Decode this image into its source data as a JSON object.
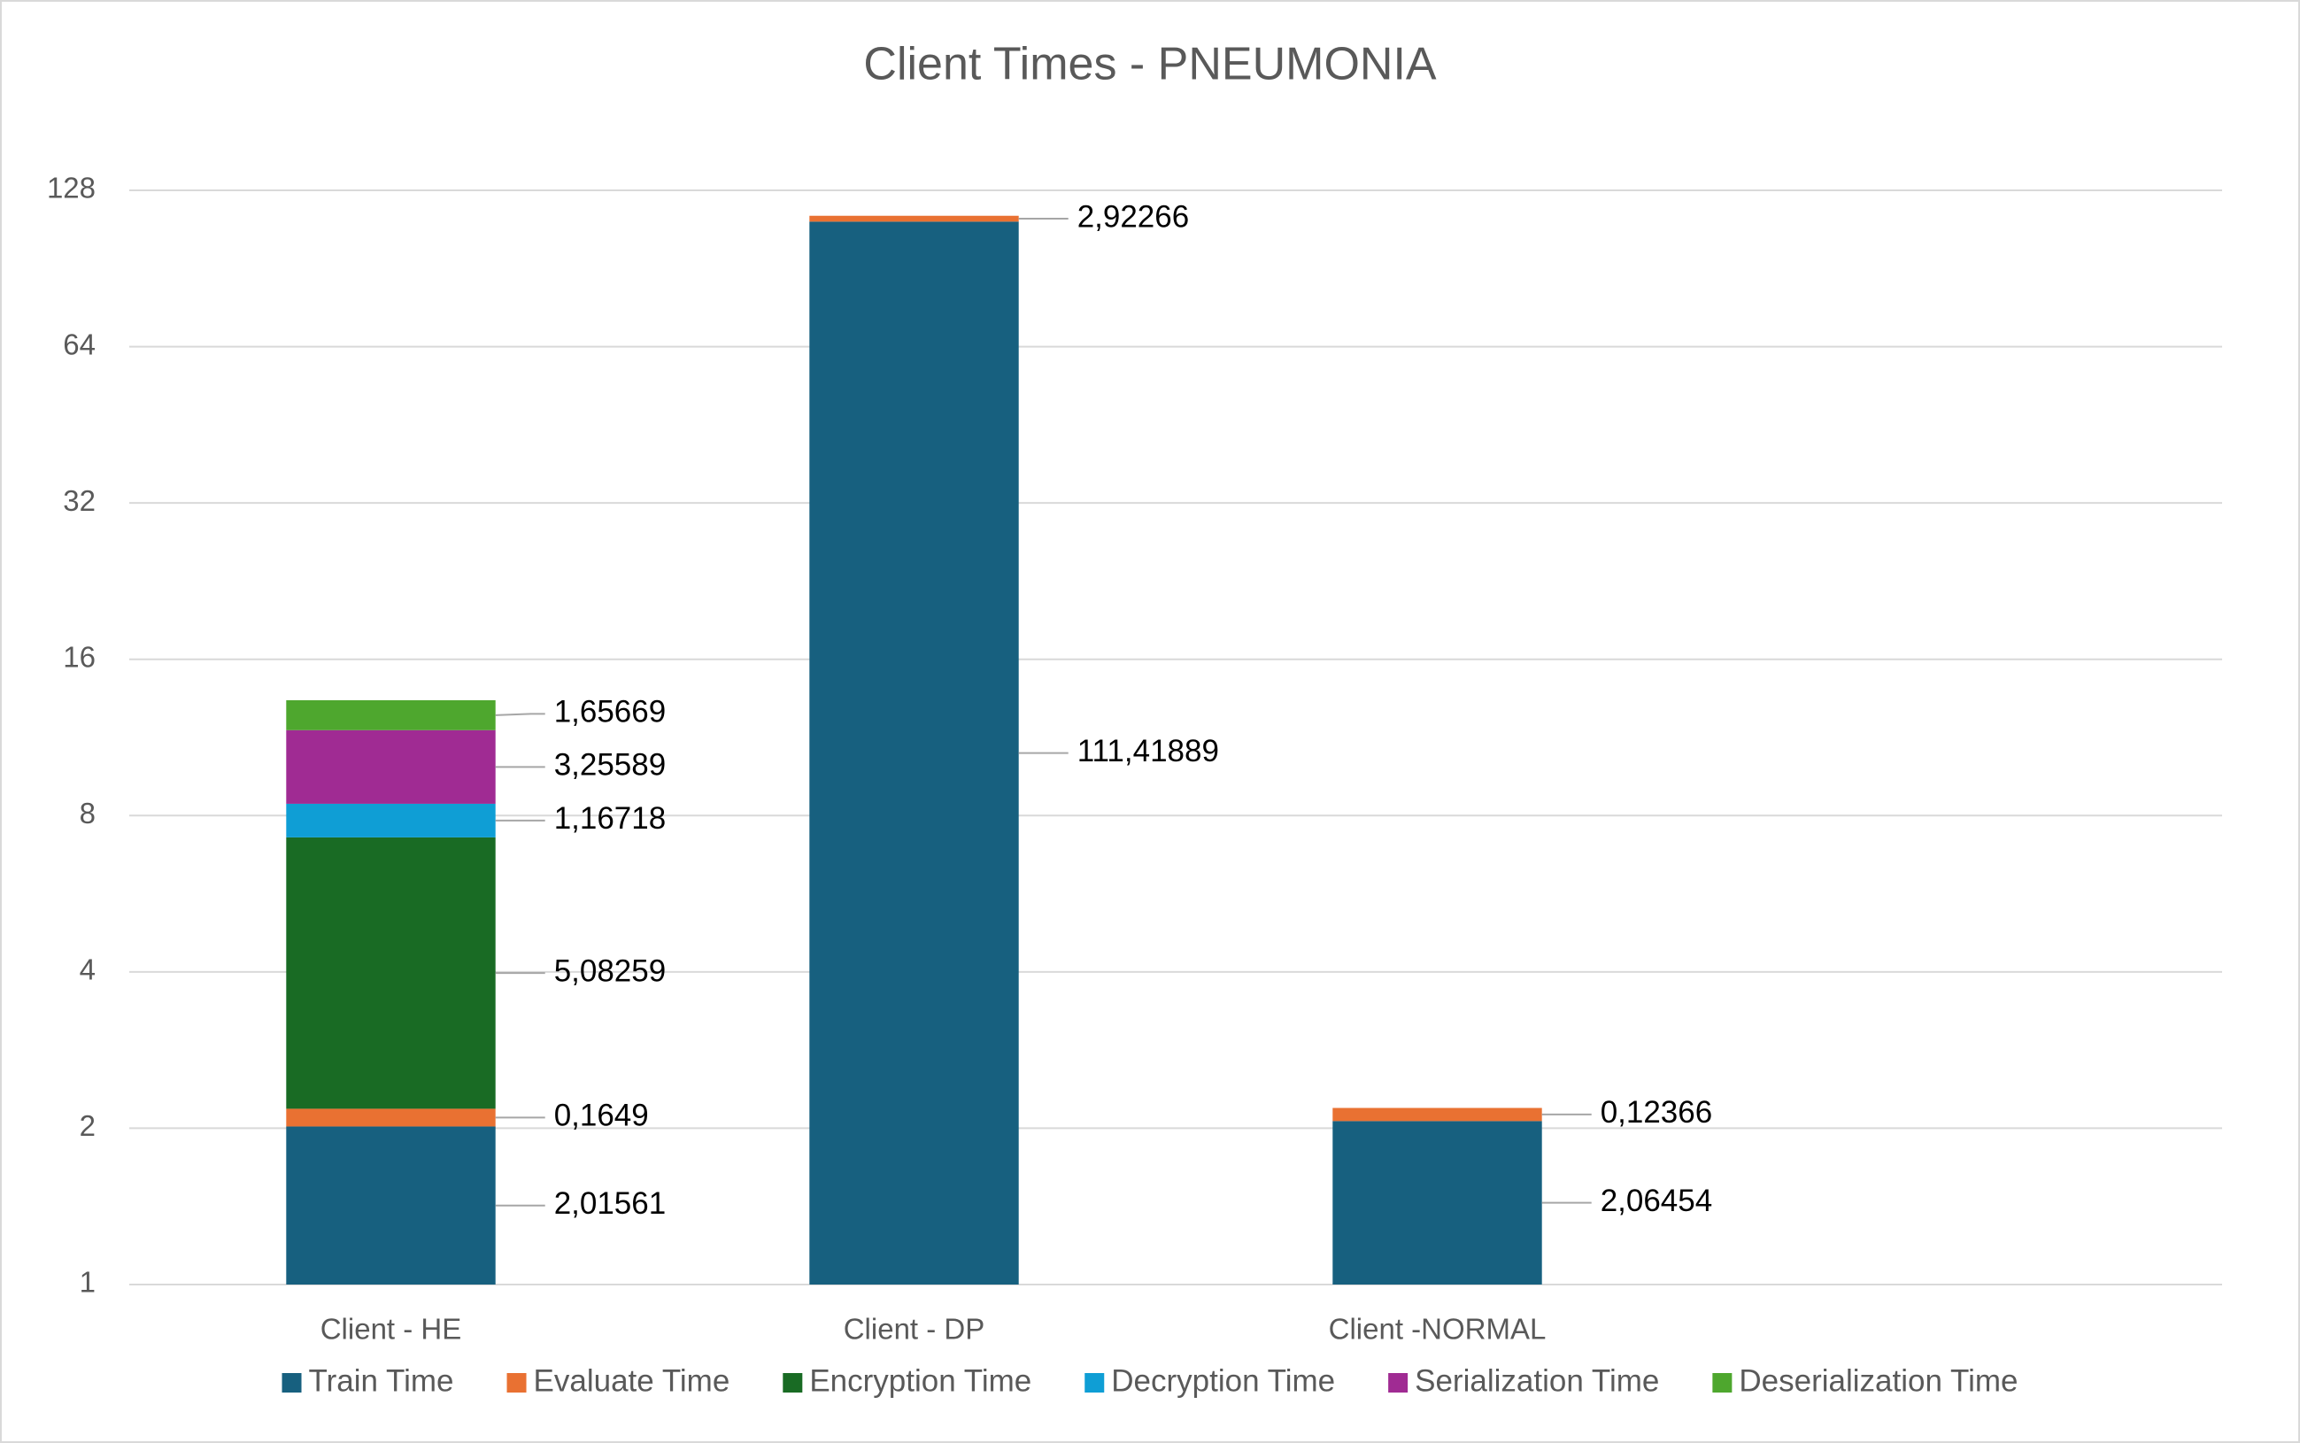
{
  "chart_data": {
    "type": "bar",
    "stacked": true,
    "title": "Client Times - PNEUMONIA",
    "categories": [
      "Client - HE",
      "Client - DP",
      "Client -NORMAL"
    ],
    "series": [
      {
        "name": "Train Time",
        "color": "#17607f",
        "values": [
          2.01561,
          111.41889,
          2.06454
        ],
        "value_labels": [
          "2,01561",
          "111,41889",
          "2,06454"
        ]
      },
      {
        "name": "Evaluate Time",
        "color": "#e97132",
        "values": [
          0.1649,
          2.92266,
          0.12366
        ],
        "value_labels": [
          "0,1649",
          "2,92266",
          "0,12366"
        ]
      },
      {
        "name": "Encryption Time",
        "color": "#196b24",
        "values": [
          5.08259,
          null,
          null
        ],
        "value_labels": [
          "5,08259",
          null,
          null
        ]
      },
      {
        "name": "Decryption Time",
        "color": "#0f9ed5",
        "values": [
          1.16718,
          null,
          null
        ],
        "value_labels": [
          "1,16718",
          null,
          null
        ]
      },
      {
        "name": "Serialization Time",
        "color": "#a02b93",
        "values": [
          3.25589,
          null,
          null
        ],
        "value_labels": [
          "3,25589",
          null,
          null
        ]
      },
      {
        "name": "Deserialization Time",
        "color": "#4ea72e",
        "values": [
          1.65669,
          null,
          null
        ],
        "value_labels": [
          "1,65669",
          null,
          null
        ]
      }
    ],
    "log_scale": true,
    "log_base": 2,
    "ylim": [
      1,
      128
    ],
    "yticks": [
      1,
      2,
      4,
      8,
      16,
      32,
      64,
      128
    ],
    "grid": true,
    "legend": "bottom"
  }
}
